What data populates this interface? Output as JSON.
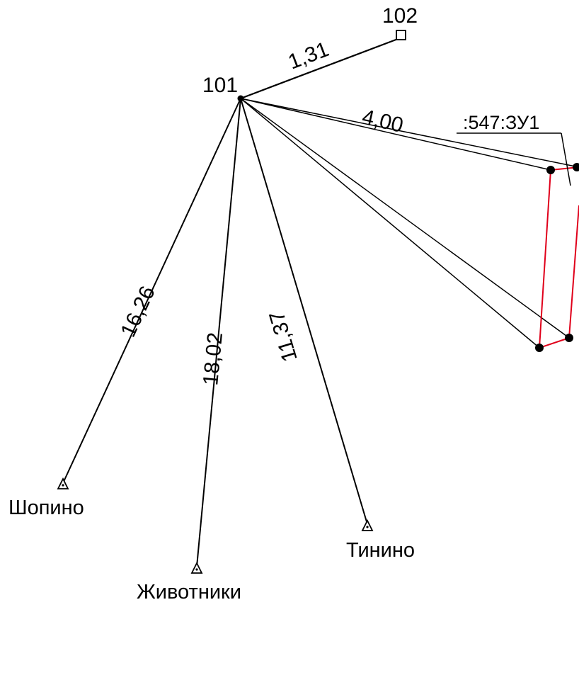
{
  "points": {
    "p101": {
      "label": "101"
    },
    "p102": {
      "label": "102"
    }
  },
  "distances": {
    "d102": "1,31",
    "dParcel": "4,00",
    "dShopino": "16,26",
    "dZhivotniki": "18,02",
    "dTinino": "11,37"
  },
  "stations": {
    "shopino": "Шопино",
    "zhivotniki": "Животники",
    "tinino": "Тинино"
  },
  "parcel": {
    "label": ":547:ЗУ1"
  },
  "colors": {
    "line": "#000000",
    "parcel_boundary": "#e0001b",
    "background": "#ffffff"
  }
}
